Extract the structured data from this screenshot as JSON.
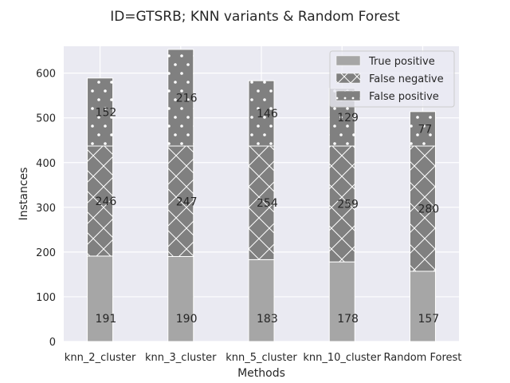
{
  "chart_data": {
    "type": "bar",
    "stacked": true,
    "title": "ID=GTSRB; KNN variants & Random Forest",
    "xlabel": "Methods",
    "ylabel": "Instances",
    "categories": [
      "knn_2_cluster",
      "knn_3_cluster",
      "knn_5_cluster",
      "knn_10_cluster",
      "Random Forest"
    ],
    "ylim": [
      0,
      660
    ],
    "yticks": [
      0,
      100,
      200,
      300,
      400,
      500,
      600
    ],
    "grid": true,
    "legend_position": "top-right",
    "series": [
      {
        "name": "True positive",
        "values": [
          191,
          190,
          183,
          178,
          157
        ],
        "color": "#a6a6a6",
        "hatch": "none"
      },
      {
        "name": "False negative",
        "values": [
          246,
          247,
          254,
          259,
          280
        ],
        "color": "#808080",
        "hatch": "cross"
      },
      {
        "name": "False positive",
        "values": [
          152,
          216,
          146,
          129,
          77
        ],
        "color": "#808080",
        "hatch": "dots"
      }
    ],
    "colors": {
      "background": "#eaeaf2",
      "grid": "#ffffff",
      "edge": "#ffffff"
    }
  }
}
